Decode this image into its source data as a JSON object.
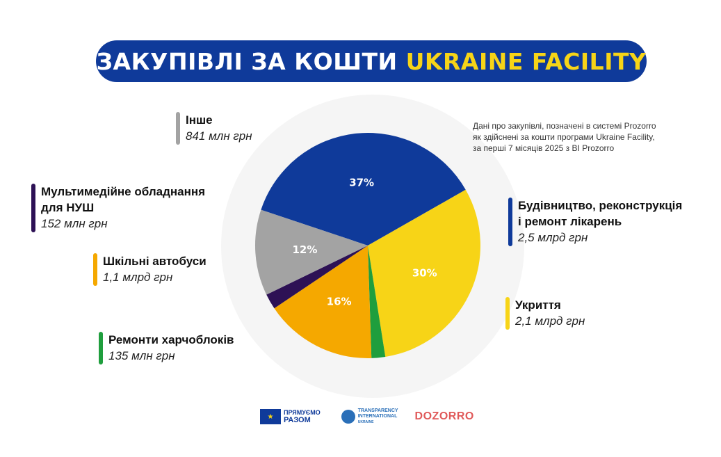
{
  "title": {
    "part1": "ЗАКУПІВЛІ ЗА КОШТИ",
    "part2": "UKRAINE FACILITY"
  },
  "note": [
    "Дані про закупівлі, позначені в системі Prozorro",
    "як здійснені за кошти програми Ukraine Facility,",
    "за перші 7 місяців 2025 з BI Prozorro"
  ],
  "chart_data": {
    "type": "pie",
    "title": "ЗАКУПІВЛІ ЗА КОШТИ UKRAINE FACILITY",
    "slices": [
      {
        "name": "Будівництво, реконструкція і ремонт лікарень",
        "name_lines": [
          "Будівництво, реконструкція",
          "і ремонт лікарень"
        ],
        "amount": "2,5 млрд грн",
        "value_uah_mln": 2500,
        "percent": 37,
        "percent_label": "37%",
        "color": "#0f3a9a"
      },
      {
        "name": "Укриття",
        "name_lines": [
          "Укриття"
        ],
        "amount": "2,1 млрд грн",
        "value_uah_mln": 2100,
        "percent": 30,
        "percent_label": "30%",
        "color": "#f7d417"
      },
      {
        "name": "Ремонти харчоблоків",
        "name_lines": [
          "Ремонти харчоблоків"
        ],
        "amount": "135 млн грн",
        "value_uah_mln": 135,
        "percent": 2,
        "percent_label": "",
        "color": "#1f9e3d"
      },
      {
        "name": "Шкільні автобуси",
        "name_lines": [
          "Шкільні автобуси"
        ],
        "amount": "1,1 млрд грн",
        "value_uah_mln": 1100,
        "percent": 16,
        "percent_label": "16%",
        "color": "#f5a800"
      },
      {
        "name": "Мультимедійне обладнання для НУШ",
        "name_lines": [
          "Мультимедійне обладнання",
          "для НУШ"
        ],
        "amount": "152 млн грн",
        "value_uah_mln": 152,
        "percent": 2,
        "percent_label": "",
        "color": "#2d1155"
      },
      {
        "name": "Інше",
        "name_lines": [
          "Інше"
        ],
        "amount": "841 млн грн",
        "value_uah_mln": 841,
        "percent": 12,
        "percent_label": "12%",
        "color": "#a3a3a3"
      }
    ]
  },
  "logos": {
    "eu_line1": "ПРЯМУЄМО",
    "eu_line2": "РАЗОМ",
    "ti_line1": "TRANSPARENCY",
    "ti_line2": "INTERNATIONAL",
    "ti_line3": "UKRAINE",
    "dozorro": "DOZORRO"
  },
  "colors": {
    "title_bg": "#0f3a9a",
    "title_accent": "#f7d417",
    "circle_bg": "#f5f5f5"
  }
}
